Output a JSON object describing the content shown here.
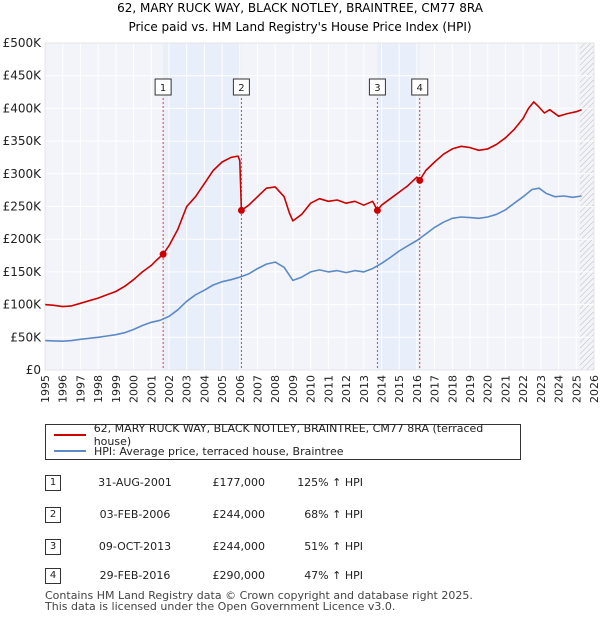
{
  "chart_data": {
    "type": "line",
    "title": "62, MARY RUCK WAY, BLACK NOTLEY, BRAINTREE, CM77 8RA",
    "subtitle": "Price paid vs. HM Land Registry's House Price Index (HPI)",
    "xlabel": "",
    "ylabel": "",
    "xlim": [
      1995,
      2026
    ],
    "ylim": [
      0,
      500000
    ],
    "x_ticks": [
      1995,
      1996,
      1997,
      1998,
      1999,
      2000,
      2001,
      2002,
      2003,
      2004,
      2005,
      2006,
      2007,
      2008,
      2009,
      2010,
      2011,
      2012,
      2013,
      2014,
      2015,
      2016,
      2017,
      2018,
      2019,
      2020,
      2021,
      2022,
      2023,
      2024,
      2025,
      2026
    ],
    "y_ticks": [
      {
        "value": 0,
        "label": "£0"
      },
      {
        "value": 50000,
        "label": "£50K"
      },
      {
        "value": 100000,
        "label": "£100K"
      },
      {
        "value": 150000,
        "label": "£150K"
      },
      {
        "value": 200000,
        "label": "£200K"
      },
      {
        "value": 250000,
        "label": "£250K"
      },
      {
        "value": 300000,
        "label": "£300K"
      },
      {
        "value": 350000,
        "label": "£350K"
      },
      {
        "value": 400000,
        "label": "£400K"
      },
      {
        "value": 450000,
        "label": "£450K"
      },
      {
        "value": 500000,
        "label": "£500K"
      }
    ],
    "grid": true,
    "shaded_spans": [
      [
        2001.67,
        2006.09
      ],
      [
        2013.77,
        2016.16
      ]
    ],
    "future_hatch_from": 2025.2,
    "series": [
      {
        "name": "62, MARY RUCK WAY, BLACK NOTLEY, BRAINTREE, CM77 8RA (terraced house)",
        "color": "#cc0000",
        "points": [
          [
            1995.0,
            100000
          ],
          [
            1995.5,
            99000
          ],
          [
            1996.0,
            97000
          ],
          [
            1996.5,
            98000
          ],
          [
            1997.0,
            102000
          ],
          [
            1997.5,
            106000
          ],
          [
            1998.0,
            110000
          ],
          [
            1998.5,
            115000
          ],
          [
            1999.0,
            120000
          ],
          [
            1999.5,
            128000
          ],
          [
            2000.0,
            138000
          ],
          [
            2000.5,
            150000
          ],
          [
            2001.0,
            160000
          ],
          [
            2001.3,
            168000
          ],
          [
            2001.67,
            177000
          ],
          [
            2002.0,
            190000
          ],
          [
            2002.5,
            215000
          ],
          [
            2003.0,
            250000
          ],
          [
            2003.5,
            265000
          ],
          [
            2004.0,
            285000
          ],
          [
            2004.5,
            305000
          ],
          [
            2005.0,
            318000
          ],
          [
            2005.5,
            325000
          ],
          [
            2005.9,
            327000
          ],
          [
            2006.0,
            320000
          ],
          [
            2006.09,
            244000
          ],
          [
            2006.5,
            252000
          ],
          [
            2007.0,
            265000
          ],
          [
            2007.5,
            278000
          ],
          [
            2008.0,
            280000
          ],
          [
            2008.5,
            265000
          ],
          [
            2008.8,
            240000
          ],
          [
            2009.0,
            228000
          ],
          [
            2009.5,
            238000
          ],
          [
            2010.0,
            255000
          ],
          [
            2010.5,
            262000
          ],
          [
            2011.0,
            258000
          ],
          [
            2011.5,
            260000
          ],
          [
            2012.0,
            255000
          ],
          [
            2012.5,
            258000
          ],
          [
            2013.0,
            252000
          ],
          [
            2013.5,
            258000
          ],
          [
            2013.77,
            244000
          ],
          [
            2014.0,
            252000
          ],
          [
            2014.5,
            262000
          ],
          [
            2015.0,
            272000
          ],
          [
            2015.5,
            282000
          ],
          [
            2016.0,
            295000
          ],
          [
            2016.16,
            290000
          ],
          [
            2016.5,
            305000
          ],
          [
            2017.0,
            318000
          ],
          [
            2017.5,
            330000
          ],
          [
            2018.0,
            338000
          ],
          [
            2018.5,
            342000
          ],
          [
            2019.0,
            340000
          ],
          [
            2019.5,
            336000
          ],
          [
            2020.0,
            338000
          ],
          [
            2020.5,
            345000
          ],
          [
            2021.0,
            355000
          ],
          [
            2021.5,
            368000
          ],
          [
            2022.0,
            385000
          ],
          [
            2022.3,
            400000
          ],
          [
            2022.6,
            410000
          ],
          [
            2022.9,
            402000
          ],
          [
            2023.2,
            393000
          ],
          [
            2023.5,
            398000
          ],
          [
            2024.0,
            388000
          ],
          [
            2024.5,
            392000
          ],
          [
            2025.0,
            395000
          ],
          [
            2025.3,
            398000
          ]
        ]
      },
      {
        "name": "HPI: Average price, terraced house, Braintree",
        "color": "#5b8ac6",
        "points": [
          [
            1995.0,
            45000
          ],
          [
            1995.5,
            44500
          ],
          [
            1996.0,
            44000
          ],
          [
            1996.5,
            45000
          ],
          [
            1997.0,
            47000
          ],
          [
            1997.5,
            48500
          ],
          [
            1998.0,
            50000
          ],
          [
            1998.5,
            52000
          ],
          [
            1999.0,
            54000
          ],
          [
            1999.5,
            57000
          ],
          [
            2000.0,
            62000
          ],
          [
            2000.5,
            68000
          ],
          [
            2001.0,
            73000
          ],
          [
            2001.5,
            76000
          ],
          [
            2002.0,
            82000
          ],
          [
            2002.5,
            92000
          ],
          [
            2003.0,
            105000
          ],
          [
            2003.5,
            115000
          ],
          [
            2004.0,
            122000
          ],
          [
            2004.5,
            130000
          ],
          [
            2005.0,
            135000
          ],
          [
            2005.5,
            138000
          ],
          [
            2006.0,
            142000
          ],
          [
            2006.5,
            147000
          ],
          [
            2007.0,
            155000
          ],
          [
            2007.5,
            162000
          ],
          [
            2008.0,
            165000
          ],
          [
            2008.5,
            157000
          ],
          [
            2009.0,
            137000
          ],
          [
            2009.5,
            142000
          ],
          [
            2010.0,
            150000
          ],
          [
            2010.5,
            153000
          ],
          [
            2011.0,
            150000
          ],
          [
            2011.5,
            152000
          ],
          [
            2012.0,
            149000
          ],
          [
            2012.5,
            152000
          ],
          [
            2013.0,
            150000
          ],
          [
            2013.5,
            155000
          ],
          [
            2014.0,
            163000
          ],
          [
            2014.5,
            172000
          ],
          [
            2015.0,
            182000
          ],
          [
            2015.5,
            190000
          ],
          [
            2016.0,
            198000
          ],
          [
            2016.5,
            208000
          ],
          [
            2017.0,
            218000
          ],
          [
            2017.5,
            226000
          ],
          [
            2018.0,
            232000
          ],
          [
            2018.5,
            234000
          ],
          [
            2019.0,
            233000
          ],
          [
            2019.5,
            232000
          ],
          [
            2020.0,
            234000
          ],
          [
            2020.5,
            238000
          ],
          [
            2021.0,
            245000
          ],
          [
            2021.5,
            255000
          ],
          [
            2022.0,
            265000
          ],
          [
            2022.5,
            276000
          ],
          [
            2022.9,
            278000
          ],
          [
            2023.3,
            270000
          ],
          [
            2023.8,
            265000
          ],
          [
            2024.3,
            266000
          ],
          [
            2024.8,
            264000
          ],
          [
            2025.3,
            266000
          ]
        ]
      }
    ],
    "transactions": [
      {
        "n": "1",
        "x": 2001.67,
        "price": 177000
      },
      {
        "n": "2",
        "x": 2006.09,
        "price": 244000
      },
      {
        "n": "3",
        "x": 2013.77,
        "price": 244000
      },
      {
        "n": "4",
        "x": 2016.16,
        "price": 290000
      }
    ]
  },
  "legend": {
    "property_label": "62, MARY RUCK WAY, BLACK NOTLEY, BRAINTREE, CM77 8RA (terraced house)",
    "hpi_label": "HPI: Average price, terraced house, Braintree"
  },
  "table": {
    "rows": [
      {
        "n": "1",
        "date": "31-AUG-2001",
        "price": "£177,000",
        "hpi": "125% ↑ HPI"
      },
      {
        "n": "2",
        "date": "03-FEB-2006",
        "price": "£244,000",
        "hpi": "68% ↑ HPI"
      },
      {
        "n": "3",
        "date": "09-OCT-2013",
        "price": "£244,000",
        "hpi": "51% ↑ HPI"
      },
      {
        "n": "4",
        "date": "29-FEB-2016",
        "price": "£290,000",
        "hpi": "47% ↑ HPI"
      }
    ]
  },
  "footer": {
    "line1": "Contains HM Land Registry data © Crown copyright and database right 2025.",
    "line2": "This data is licensed under the Open Government Licence v3.0."
  },
  "colors": {
    "property": "#cc0000",
    "hpi": "#5b8ac6",
    "shade": "#e8eefa",
    "marker_line": "#d04545",
    "plot_bg": "#f3f4fa"
  }
}
